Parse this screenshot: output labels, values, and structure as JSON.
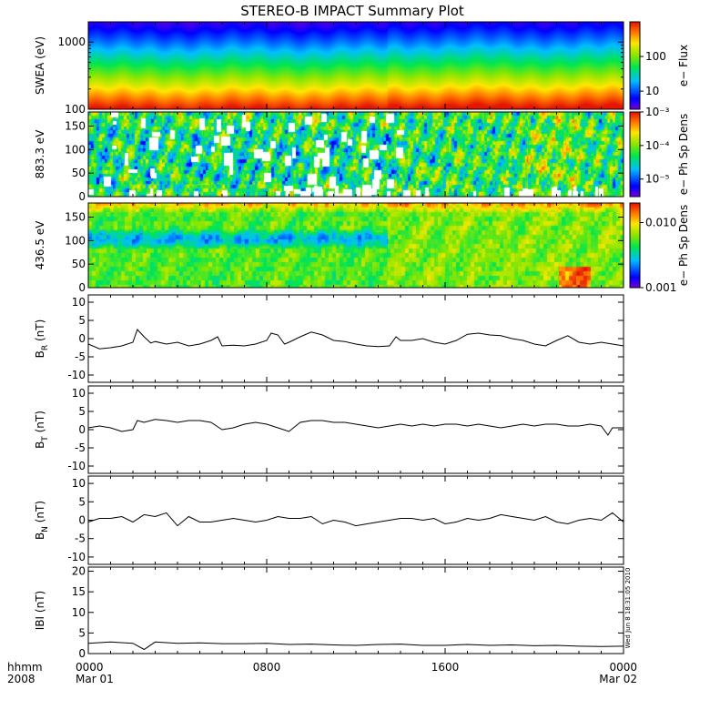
{
  "title": "STEREO-B IMPACT Summary Plot",
  "stamp": "Wed Jun  8 18:31:05 2010",
  "x_axis": {
    "row1_label": "hhmm",
    "row2_label": "2008",
    "ticks": [
      {
        "hours": 0,
        "label": "0000",
        "sublabel": "Mar 01"
      },
      {
        "hours": 8,
        "label": "0800",
        "sublabel": ""
      },
      {
        "hours": 16,
        "label": "1600",
        "sublabel": ""
      },
      {
        "hours": 24,
        "label": "0000",
        "sublabel": "Mar 02"
      }
    ],
    "range_hours": [
      0,
      24
    ]
  },
  "colors": {
    "line": "#000000",
    "missing": "#ffffff"
  },
  "chart_data": [
    {
      "type": "heatmap",
      "ylabel": "SWEA (eV)",
      "yscale": "log",
      "ylim": [
        100,
        2000
      ],
      "yticks": [
        {
          "value": 100,
          "label": "100"
        },
        {
          "value": 1000,
          "label": "1000"
        }
      ],
      "colorbar": {
        "label": "e− Flux",
        "scale": "log",
        "range": [
          3,
          1000
        ],
        "ticks": [
          {
            "value": 10,
            "label": "10"
          },
          {
            "value": 100,
            "label": "100"
          }
        ]
      },
      "description": "electron flux decreasing with energy; red/orange below ~200 eV, green near 400 eV, cyan ~600 eV, blue above ~800 eV, purple at top"
    },
    {
      "type": "heatmap",
      "ylabel": "883.3 eV",
      "ylim": [
        0,
        180
      ],
      "yticks": [
        {
          "value": 0,
          "label": "0"
        },
        {
          "value": 50,
          "label": "50"
        },
        {
          "value": 100,
          "label": "100"
        },
        {
          "value": 150,
          "label": "150"
        }
      ],
      "colorbar": {
        "label": "e− Ph Sp Dens",
        "scale": "log",
        "range": [
          3e-06,
          0.001
        ],
        "ticks": [
          {
            "value": 1e-05,
            "label": "10⁻⁵"
          },
          {
            "value": 0.0001,
            "label": "10⁻⁴"
          },
          {
            "value": 0.001,
            "label": "10⁻³"
          }
        ]
      },
      "description": "pitch angle distribution, mostly green/yellow with cyan-blue patches and white gaps between 0 and 14 h"
    },
    {
      "type": "heatmap",
      "ylabel": "436.5 eV",
      "ylim": [
        0,
        180
      ],
      "yticks": [
        {
          "value": 0,
          "label": "0"
        },
        {
          "value": 50,
          "label": "50"
        },
        {
          "value": 100,
          "label": "100"
        },
        {
          "value": 150,
          "label": "150"
        }
      ],
      "colorbar": {
        "label": "e− Ph Sp Dens",
        "scale": "log",
        "range": [
          0.001,
          0.02
        ],
        "ticks": [
          {
            "value": 0.001,
            "label": "0.001"
          },
          {
            "value": 0.01,
            "label": "0.010"
          }
        ]
      },
      "description": "pitch angle distribution, orange/red near 180 deg, green/yellow elsewhere, cyan-blue band near 100 deg between 0 and 14 h"
    },
    {
      "type": "line",
      "ylabel": "B_R (nT)",
      "ylabel_main": "B",
      "ylabel_sub": "R",
      "ylabel_unit": " (nT)",
      "ylim": [
        -12,
        12
      ],
      "yticks": [
        -10,
        -5,
        0,
        5,
        10
      ],
      "x": [
        0,
        0.5,
        1,
        1.5,
        2,
        2.2,
        2.5,
        2.8,
        3,
        3.5,
        4,
        4.5,
        5,
        5.5,
        5.8,
        6,
        6.5,
        7,
        7.5,
        8,
        8.2,
        8.5,
        8.8,
        9,
        9.5,
        10,
        10.5,
        11,
        11.5,
        12,
        12.5,
        13,
        13.5,
        13.8,
        14,
        14.5,
        15,
        15.5,
        16,
        16.5,
        17,
        17.5,
        18,
        18.5,
        19,
        19.5,
        20,
        20.5,
        21,
        21.5,
        22,
        22.5,
        23,
        23.5,
        24
      ],
      "y": [
        -1.5,
        -2.8,
        -2.5,
        -2.0,
        -1.0,
        2.5,
        0.5,
        -1.2,
        -0.8,
        -1.5,
        -1.0,
        -2.0,
        -1.5,
        -0.5,
        0.5,
        -2.0,
        -1.8,
        -2.0,
        -1.5,
        -0.5,
        1.5,
        1.0,
        -1.5,
        -1.0,
        0.5,
        1.8,
        1.0,
        -0.5,
        -0.8,
        -1.5,
        -2.0,
        -2.2,
        -2.0,
        0.5,
        -0.5,
        -0.5,
        0.0,
        -1.0,
        -1.5,
        -0.5,
        1.2,
        1.5,
        1.0,
        0.8,
        0.0,
        -0.5,
        -1.5,
        -2.0,
        -0.5,
        0.8,
        -1.0,
        -1.5,
        -1.0,
        -1.5,
        -2.0
      ]
    },
    {
      "type": "line",
      "ylabel": "B_T (nT)",
      "ylabel_main": "B",
      "ylabel_sub": "T",
      "ylabel_unit": " (nT)",
      "ylim": [
        -12,
        12
      ],
      "yticks": [
        -10,
        -5,
        0,
        5,
        10
      ],
      "x": [
        0,
        0.5,
        1,
        1.5,
        2,
        2.2,
        2.5,
        3,
        3.5,
        4,
        4.5,
        5,
        5.5,
        6,
        6.5,
        7,
        7.5,
        8,
        8.5,
        9,
        9.5,
        10,
        10.5,
        11,
        11.5,
        12,
        12.5,
        13,
        13.5,
        14,
        14.5,
        15,
        15.5,
        16,
        16.5,
        17,
        17.5,
        18,
        18.5,
        19,
        19.5,
        20,
        20.5,
        21,
        21.5,
        22,
        22.5,
        23,
        23.3,
        23.5,
        24
      ],
      "y": [
        0.5,
        1.0,
        0.5,
        -0.5,
        0.0,
        2.5,
        2.0,
        2.8,
        2.5,
        2.0,
        2.5,
        2.5,
        2.0,
        0.0,
        0.5,
        1.5,
        2.0,
        1.5,
        0.5,
        -0.5,
        2.0,
        2.5,
        2.5,
        2.0,
        2.0,
        1.5,
        1.0,
        0.5,
        1.0,
        1.5,
        1.0,
        1.5,
        1.0,
        1.5,
        1.5,
        1.0,
        1.5,
        1.0,
        0.5,
        1.0,
        1.5,
        1.0,
        1.5,
        1.5,
        1.0,
        1.0,
        1.5,
        1.0,
        -1.5,
        0.5,
        0.5
      ]
    },
    {
      "type": "line",
      "ylabel": "B_N (nT)",
      "ylabel_main": "B",
      "ylabel_sub": "N",
      "ylabel_unit": " (nT)",
      "ylim": [
        -12,
        12
      ],
      "yticks": [
        -10,
        -5,
        0,
        5,
        10
      ],
      "x": [
        0,
        0.5,
        1,
        1.5,
        2,
        2.5,
        3,
        3.5,
        4,
        4.5,
        5,
        5.5,
        6,
        6.5,
        7,
        7.5,
        8,
        8.5,
        9,
        9.5,
        10,
        10.5,
        11,
        11.5,
        12,
        12.5,
        13,
        13.5,
        14,
        14.5,
        15,
        15.5,
        16,
        16.5,
        17,
        17.5,
        18,
        18.5,
        19,
        19.5,
        20,
        20.5,
        21,
        21.5,
        22,
        22.5,
        23,
        23.5,
        24
      ],
      "y": [
        -0.5,
        0.5,
        0.5,
        1.0,
        -0.5,
        1.5,
        1.0,
        2.0,
        -1.5,
        1.0,
        -0.5,
        -0.5,
        0.0,
        0.5,
        0.0,
        -0.5,
        0.0,
        1.0,
        0.5,
        0.5,
        1.0,
        -1.0,
        0.0,
        -0.5,
        -1.5,
        -1.0,
        -0.5,
        0.0,
        0.5,
        0.5,
        0.0,
        0.5,
        -1.0,
        -0.5,
        0.5,
        0.0,
        0.5,
        1.5,
        1.0,
        0.5,
        0.0,
        1.0,
        -0.5,
        -1.0,
        0.0,
        0.5,
        0.0,
        2.0,
        -0.5
      ]
    },
    {
      "type": "line",
      "ylabel": "|B| (nT)",
      "ylabel_main": "IBI",
      "ylabel_sub": "",
      "ylabel_unit": " (nT)",
      "ylim": [
        0,
        21
      ],
      "yticks": [
        0,
        5,
        10,
        15,
        20
      ],
      "x": [
        0,
        1,
        2,
        2.5,
        3,
        4,
        5,
        6,
        7,
        8,
        9,
        10,
        11,
        12,
        13,
        14,
        15,
        16,
        17,
        18,
        19,
        20,
        21,
        22,
        23,
        24
      ],
      "y": [
        2.5,
        2.8,
        2.5,
        1.0,
        2.8,
        2.5,
        2.6,
        2.4,
        2.4,
        2.5,
        2.2,
        2.3,
        2.1,
        2.0,
        2.2,
        2.3,
        2.0,
        2.0,
        2.2,
        2.0,
        2.1,
        1.9,
        2.0,
        1.8,
        1.7,
        1.8
      ]
    }
  ]
}
